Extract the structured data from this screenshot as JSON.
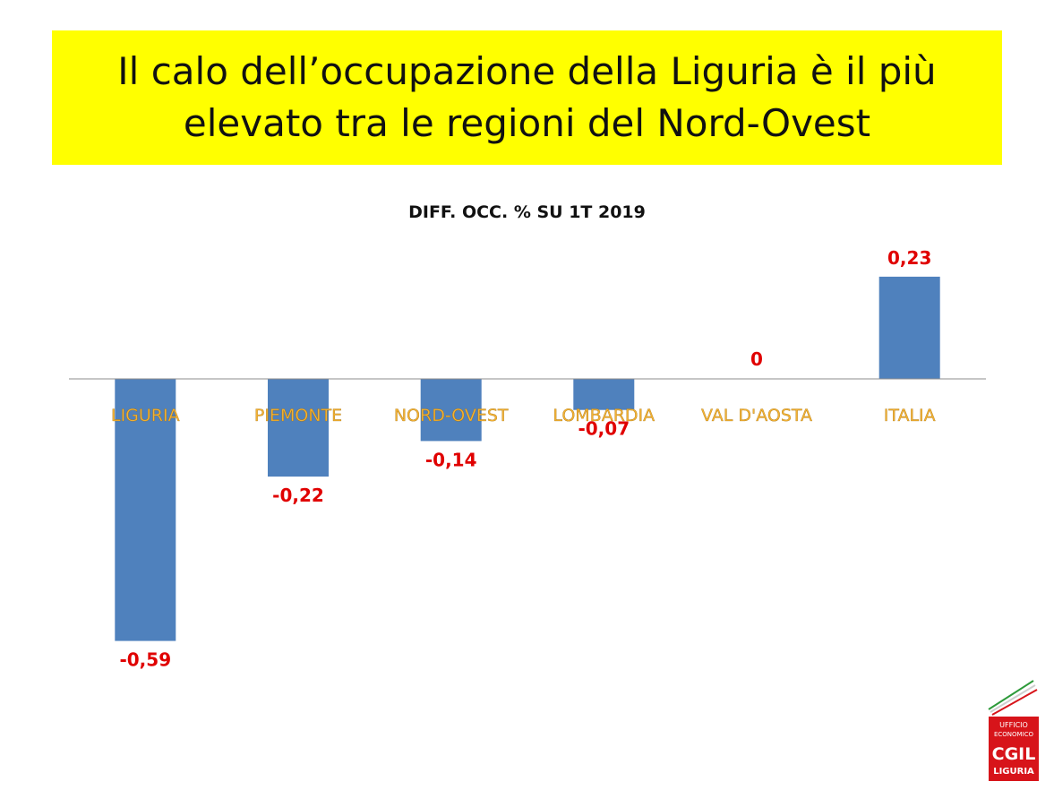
{
  "title": "Il calo dell’occupazione della Liguria è il più elevato tra le regioni del Nord-Ovest",
  "colors": {
    "title_background": "#ffff00",
    "bar": "#4f81bd",
    "value_label": "#e00000",
    "category_label": "#f2b134"
  },
  "chart_data": {
    "type": "bar",
    "title": "DIFF. OCC. % SU 1T 2019",
    "categories": [
      "LIGURIA",
      "PIEMONTE",
      "NORD-OVEST",
      "LOMBARDIA",
      "VAL D'AOSTA",
      "ITALIA"
    ],
    "values": [
      -0.59,
      -0.22,
      -0.14,
      -0.07,
      0,
      0.23
    ],
    "value_labels": [
      "-0,59",
      "-0,22",
      "-0,14",
      "-0,07",
      "0",
      "0,23"
    ],
    "xlabel": "",
    "ylabel": "",
    "ylim": [
      -0.59,
      0.23
    ],
    "grid": false,
    "legend": "none"
  },
  "logo": {
    "line1": "UFFICIO",
    "line2": "ECONOMICO",
    "brand": "CGIL",
    "region": "LIGURIA"
  }
}
